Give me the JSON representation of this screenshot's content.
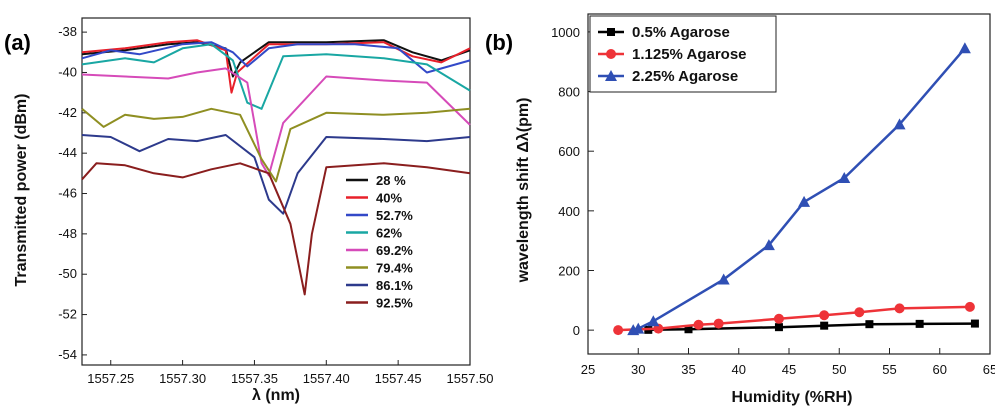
{
  "chart_data": [
    {
      "type": "line",
      "panel_label": "(a)",
      "xlabel": "λ (nm)",
      "ylabel": "Transmitted power (dBm)",
      "xlim": [
        1557.23,
        1557.5
      ],
      "ylim": [
        -54.5,
        -37.3
      ],
      "x_ticks": [
        "1557.25",
        "1557.30",
        "1557.35",
        "1557.40",
        "1557.45",
        "1557.50"
      ],
      "y_ticks": [
        "-38",
        "-40",
        "-42",
        "-44",
        "-46",
        "-48",
        "-50",
        "-52",
        "-54"
      ],
      "legend_position": "bottom-right",
      "series": [
        {
          "name": "28 %",
          "color": "#111111",
          "x": [
            1557.23,
            1557.26,
            1557.29,
            1557.31,
            1557.33,
            1557.335,
            1557.34,
            1557.36,
            1557.4,
            1557.44,
            1557.46,
            1557.48,
            1557.5
          ],
          "y": [
            -39.1,
            -38.9,
            -38.6,
            -38.5,
            -38.8,
            -40.2,
            -39.5,
            -38.5,
            -38.5,
            -38.4,
            -39.0,
            -39.4,
            -38.9
          ]
        },
        {
          "name": "40%",
          "color": "#e8202a",
          "x": [
            1557.23,
            1557.26,
            1557.29,
            1557.31,
            1557.33,
            1557.334,
            1557.338,
            1557.36,
            1557.4,
            1557.44,
            1557.46,
            1557.48,
            1557.5
          ],
          "y": [
            -39.0,
            -38.8,
            -38.5,
            -38.4,
            -38.9,
            -41.0,
            -40.0,
            -38.6,
            -38.6,
            -38.5,
            -39.2,
            -39.5,
            -38.8
          ]
        },
        {
          "name": "52.7%",
          "color": "#3349c8",
          "x": [
            1557.23,
            1557.25,
            1557.27,
            1557.3,
            1557.32,
            1557.335,
            1557.345,
            1557.36,
            1557.38,
            1557.42,
            1557.45,
            1557.47,
            1557.5
          ],
          "y": [
            -39.3,
            -38.9,
            -39.1,
            -38.6,
            -38.5,
            -39.0,
            -39.7,
            -38.8,
            -38.6,
            -38.6,
            -38.8,
            -40.0,
            -39.4
          ]
        },
        {
          "name": "62%",
          "color": "#19a7a3",
          "x": [
            1557.23,
            1557.26,
            1557.28,
            1557.3,
            1557.32,
            1557.335,
            1557.345,
            1557.355,
            1557.37,
            1557.4,
            1557.44,
            1557.47,
            1557.5
          ],
          "y": [
            -39.6,
            -39.3,
            -39.5,
            -38.8,
            -38.6,
            -39.4,
            -41.5,
            -41.8,
            -39.2,
            -39.1,
            -39.3,
            -39.6,
            -40.9
          ]
        },
        {
          "name": "69.2%",
          "color": "#d64bb9",
          "x": [
            1557.23,
            1557.26,
            1557.29,
            1557.31,
            1557.33,
            1557.345,
            1557.355,
            1557.36,
            1557.37,
            1557.4,
            1557.44,
            1557.47,
            1557.5
          ],
          "y": [
            -40.1,
            -40.2,
            -40.3,
            -40.0,
            -39.8,
            -40.5,
            -44.5,
            -45.1,
            -42.5,
            -40.2,
            -40.4,
            -40.5,
            -42.6
          ]
        },
        {
          "name": "79.4%",
          "color": "#8f8f22",
          "x": [
            1557.23,
            1557.245,
            1557.26,
            1557.28,
            1557.3,
            1557.32,
            1557.34,
            1557.355,
            1557.365,
            1557.375,
            1557.4,
            1557.44,
            1557.47,
            1557.5
          ],
          "y": [
            -41.8,
            -42.7,
            -42.1,
            -42.3,
            -42.2,
            -41.8,
            -42.1,
            -44.3,
            -45.4,
            -42.8,
            -42.0,
            -42.1,
            -42.0,
            -41.8
          ]
        },
        {
          "name": "86.1%",
          "color": "#2d3a8c",
          "x": [
            1557.23,
            1557.25,
            1557.27,
            1557.29,
            1557.31,
            1557.33,
            1557.35,
            1557.36,
            1557.37,
            1557.38,
            1557.4,
            1557.44,
            1557.47,
            1557.5
          ],
          "y": [
            -43.1,
            -43.2,
            -43.9,
            -43.3,
            -43.4,
            -43.1,
            -44.2,
            -46.3,
            -47.0,
            -45.0,
            -43.2,
            -43.3,
            -43.4,
            -43.2
          ]
        },
        {
          "name": "92.5%",
          "color": "#8a1e1e",
          "x": [
            1557.23,
            1557.24,
            1557.26,
            1557.28,
            1557.3,
            1557.32,
            1557.34,
            1557.36,
            1557.375,
            1557.385,
            1557.39,
            1557.4,
            1557.44,
            1557.47,
            1557.5
          ],
          "y": [
            -45.3,
            -44.5,
            -44.6,
            -45.0,
            -45.2,
            -44.8,
            -44.5,
            -45.0,
            -47.5,
            -51.0,
            -48.0,
            -44.7,
            -44.5,
            -44.7,
            -45.0
          ]
        }
      ]
    },
    {
      "type": "line",
      "panel_label": "(b)",
      "xlabel": "Humidity (%RH)",
      "ylabel": "wavelength shift Δλ(pm)",
      "xlim": [
        25,
        65
      ],
      "ylim": [
        -80,
        1060
      ],
      "x_ticks": [
        "25",
        "30",
        "35",
        "40",
        "45",
        "50",
        "55",
        "60",
        "65"
      ],
      "y_ticks": [
        "0",
        "200",
        "400",
        "600",
        "800",
        "1000"
      ],
      "legend_position": "top-left",
      "series": [
        {
          "name": "0.5% Agarose",
          "color": "#000000",
          "marker": "square",
          "x": [
            31,
            35,
            44,
            48.5,
            53,
            58,
            63.5
          ],
          "y": [
            1,
            3,
            10,
            15,
            20,
            21,
            22
          ]
        },
        {
          "name": "1.125% Agarose",
          "color": "#ee3338",
          "marker": "circle",
          "x": [
            28,
            32,
            36,
            38,
            44,
            48.5,
            52,
            56,
            63
          ],
          "y": [
            0,
            5,
            18,
            22,
            38,
            50,
            60,
            73,
            78
          ]
        },
        {
          "name": "2.25% Agarose",
          "color": "#2f4fb4",
          "marker": "triangle",
          "x": [
            29.5,
            30,
            31.5,
            38.5,
            43,
            46.5,
            50.5,
            56,
            62.5
          ],
          "y": [
            0,
            5,
            30,
            170,
            285,
            430,
            510,
            690,
            945
          ]
        }
      ]
    }
  ]
}
